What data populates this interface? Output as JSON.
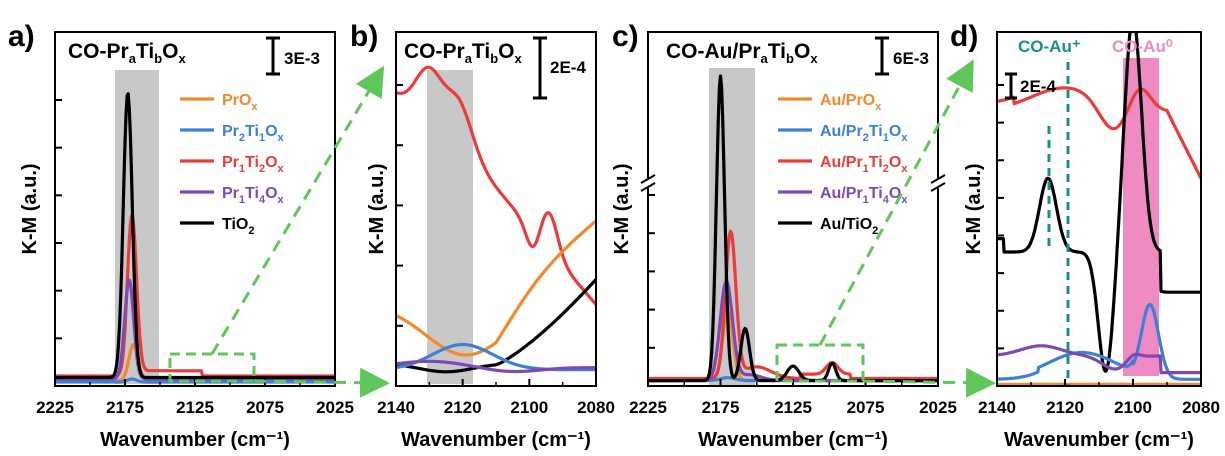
{
  "figure": {
    "panels": [
      {
        "letter": "a)",
        "title": "CO-Pr",
        "title_suffix": [
          "a",
          "Ti",
          "b",
          "O",
          "x"
        ],
        "scale_bar": "3E-3"
      },
      {
        "letter": "b)",
        "title": "CO-Pr",
        "title_suffix": [
          "a",
          "Ti",
          "b",
          "O",
          "x"
        ],
        "scale_bar": "2E-4"
      },
      {
        "letter": "c)",
        "title": "CO-Au/Pr",
        "title_suffix": [
          "a",
          "Ti",
          "b",
          "O",
          "x"
        ],
        "scale_bar": "6E-3"
      },
      {
        "letter": "d)",
        "scale_bar": "2E-4",
        "annotations": [
          "CO-Au⁺",
          "CO-Au⁰"
        ]
      }
    ],
    "colors": {
      "orange": "#f28a2a",
      "blue": "#3b82d4",
      "red": "#ec3b3b",
      "purple": "#7f49b5",
      "black": "#000000",
      "gray_band": "#c8c8c8",
      "pink_band": "#f08ac3",
      "green_arrow": "#5fc75a",
      "teal": "#1a8f8a"
    }
  },
  "chart_data": [
    {
      "type": "line",
      "panel": "a",
      "xlabel": "Wavenumber (cm⁻¹)",
      "ylabel": "K-M (a.u.)",
      "xlim": [
        2225,
        2025
      ],
      "xticks": [
        "2225",
        "2175",
        "2125",
        "2075",
        "2025"
      ],
      "legend": [
        "PrOx",
        "Pr2Ti1Ox",
        "Pr1Ti2Ox",
        "Pr1Ti4Ox",
        "TiO2"
      ],
      "legend_placement": "right",
      "series": [
        {
          "name": "PrOx",
          "color": "orange",
          "peak_x": 2169,
          "peak_height": 0.12
        },
        {
          "name": "Pr2Ti1Ox",
          "color": "blue",
          "peak_x": 2170,
          "peak_height": 0.01
        },
        {
          "name": "Pr1Ti2Ox",
          "color": "red",
          "peak_x": 2170,
          "peak_height": 0.52
        },
        {
          "name": "Pr1Ti4Ox",
          "color": "purple",
          "peak_x": 2172,
          "peak_height": 0.33
        },
        {
          "name": "TiO2",
          "color": "black",
          "peak_x": 2173,
          "peak_height": 0.95
        }
      ],
      "gray_band": [
        2183,
        2163
      ]
    },
    {
      "type": "line",
      "panel": "b",
      "xlabel": "Wavenumber (cm⁻¹)",
      "ylabel": "K-M (a.u.)",
      "xlim": [
        2140,
        2080
      ],
      "xticks": [
        "2140",
        "2120",
        "2100",
        "2080"
      ],
      "gray_band": [
        2130,
        2117
      ]
    },
    {
      "type": "line",
      "panel": "c",
      "xlabel": "Wavenumber (cm⁻¹)",
      "ylabel": "K-M (a.u.)",
      "xlim": [
        2225,
        2025
      ],
      "xticks": [
        "2225",
        "2175",
        "2125",
        "2075",
        "2025"
      ],
      "legend": [
        "Au/PrOx",
        "Au/Pr2Ti1Ox",
        "Au/Pr1Ti2Ox",
        "Au/Pr1Ti4Ox",
        "Au/TiO2"
      ],
      "legend_placement": "right",
      "gray_band": [
        2182,
        2158
      ],
      "axis_break": true
    },
    {
      "type": "line",
      "panel": "d",
      "xlabel": "Wavenumber (cm⁻¹)",
      "ylabel": "K-M (a.u.)",
      "xlim": [
        2140,
        2080
      ],
      "xticks": [
        "2140",
        "2120",
        "2100",
        "2080"
      ],
      "pink_band": [
        2104,
        2094
      ],
      "dashed_lines": [
        2120,
        2125
      ]
    }
  ]
}
